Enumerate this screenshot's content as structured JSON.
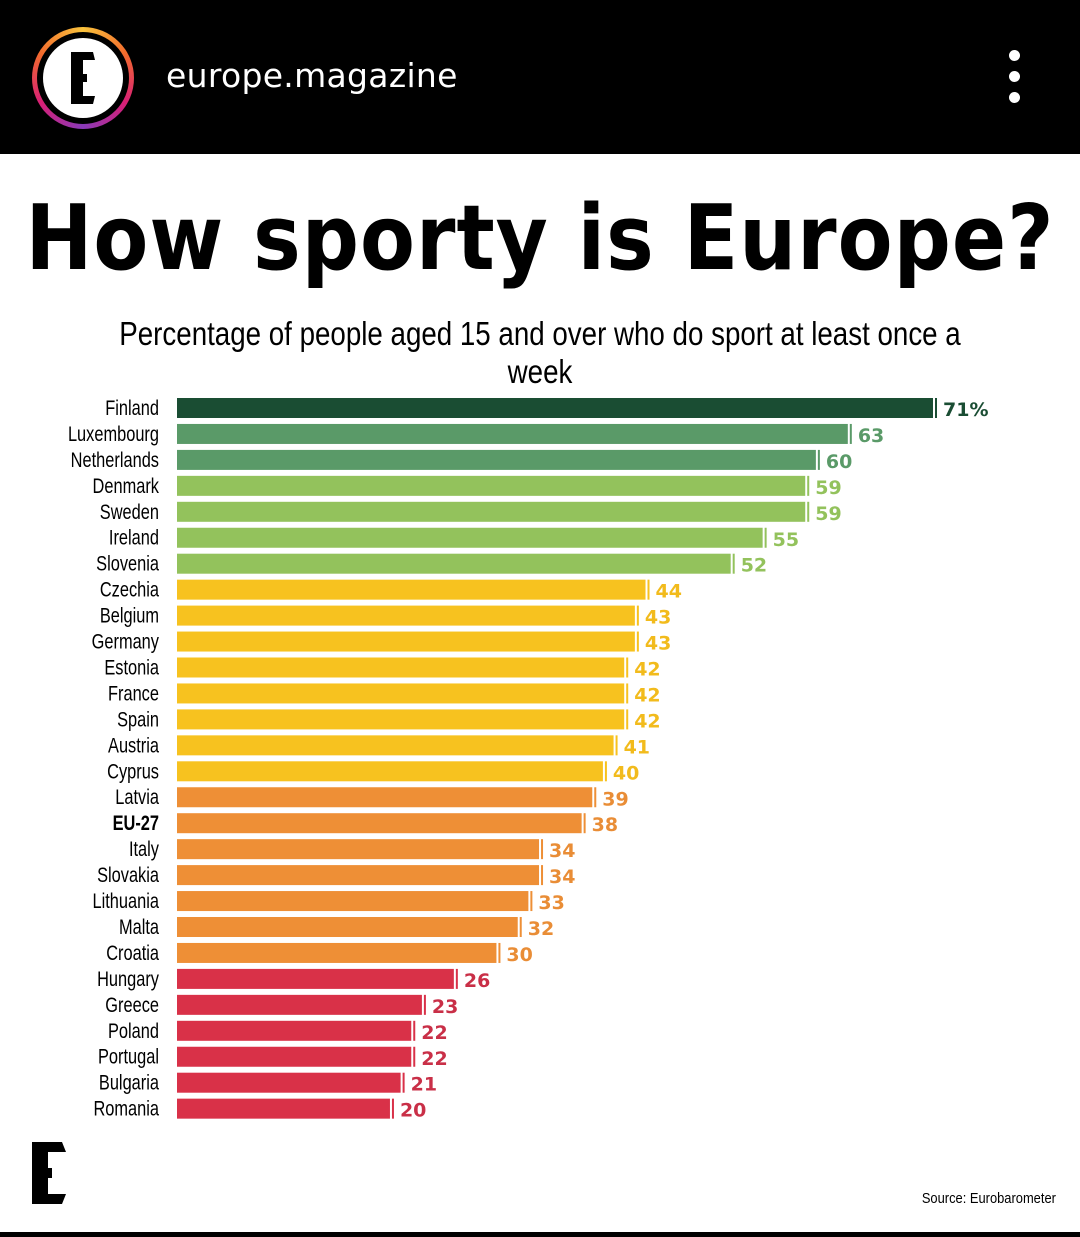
{
  "header": {
    "username": "europe.magazine",
    "avatar_icon": "europe-magazine-logo-icon",
    "menu_icon": "more-vertical-icon"
  },
  "chart_data": {
    "type": "bar",
    "orientation": "horizontal",
    "title": "How sporty is Europe?",
    "subtitle": "Percentage of people aged 15 and over who do sport at least once a week",
    "unit": "%",
    "categories": [
      "Finland",
      "Luxembourg",
      "Netherlands",
      "Denmark",
      "Sweden",
      "Ireland",
      "Slovenia",
      "Czechia",
      "Belgium",
      "Germany",
      "Estonia",
      "France",
      "Spain",
      "Austria",
      "Cyprus",
      "Latvia",
      "EU-27",
      "Italy",
      "Slovakia",
      "Lithuania",
      "Malta",
      "Croatia",
      "Hungary",
      "Greece",
      "Poland",
      "Portugal",
      "Bulgaria",
      "Romania"
    ],
    "values": [
      71,
      63,
      60,
      59,
      59,
      55,
      52,
      44,
      43,
      43,
      42,
      42,
      42,
      41,
      40,
      39,
      38,
      34,
      34,
      33,
      32,
      30,
      26,
      23,
      22,
      22,
      21,
      20
    ],
    "value_labels": [
      "71%",
      "63",
      "60",
      "59",
      "59",
      "55",
      "52",
      "44",
      "43",
      "43",
      "42",
      "42",
      "42",
      "41",
      "40",
      "39",
      "38",
      "34",
      "34",
      "33",
      "32",
      "30",
      "26",
      "23",
      "22",
      "22",
      "21",
      "20"
    ],
    "bold_categories": [
      "EU-27"
    ],
    "bar_colors": [
      "#1a4d33",
      "#5a9a68",
      "#5a9a68",
      "#93c25c",
      "#93c25c",
      "#93c25c",
      "#93c25c",
      "#f7c21f",
      "#f7c21f",
      "#f7c21f",
      "#f7c21f",
      "#f7c21f",
      "#f7c21f",
      "#f7c21f",
      "#f7c21f",
      "#ee8f36",
      "#ee8f36",
      "#ee8f36",
      "#ee8f36",
      "#ee8f36",
      "#ee8f36",
      "#ee8f36",
      "#d93148",
      "#d93148",
      "#d93148",
      "#d93148",
      "#d93148",
      "#d93148"
    ],
    "label_colors": [
      "#1a4d33",
      "#5a9a68",
      "#5a9a68",
      "#93c25c",
      "#93c25c",
      "#93c25c",
      "#93c25c",
      "#f2bb1c",
      "#f2bb1c",
      "#f2bb1c",
      "#f2bb1c",
      "#f2bb1c",
      "#f2bb1c",
      "#f2bb1c",
      "#f2bb1c",
      "#e98d36",
      "#e98d36",
      "#e98d36",
      "#e98d36",
      "#e98d36",
      "#e98d36",
      "#e98d36",
      "#c92f47",
      "#c92f47",
      "#c92f47",
      "#c92f47",
      "#c92f47",
      "#c92f47"
    ],
    "xlim": [
      0,
      71
    ],
    "grid": false,
    "legend": "none",
    "source": "Source: Eurobarometer"
  }
}
